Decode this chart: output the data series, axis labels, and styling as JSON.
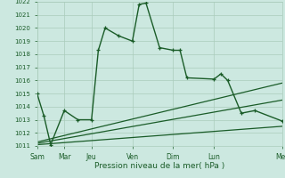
{
  "xlabel": "Pression niveau de la mer( hPa )",
  "bg_color": "#cce8e0",
  "grid_color": "#aaccbb",
  "line_color": "#1a5c28",
  "ylim": [
    1011,
    1022
  ],
  "yticks": [
    1011,
    1012,
    1013,
    1014,
    1015,
    1016,
    1017,
    1018,
    1019,
    1020,
    1021,
    1022
  ],
  "xtick_labels": [
    "Sam",
    "Mar",
    "Jeu",
    "Ven",
    "Dim",
    "Lun",
    "Mer"
  ],
  "xtick_positions": [
    0,
    1,
    2,
    3.5,
    5,
    6.5,
    9
  ],
  "xlim": [
    0,
    9
  ],
  "main_line_x": [
    0,
    0.25,
    0.5,
    1.0,
    1.5,
    2.0,
    2.25,
    2.5,
    3.0,
    3.5,
    3.75,
    4.0,
    4.5,
    5.0,
    5.25,
    5.5,
    6.5,
    6.75,
    7.0,
    7.5,
    8.0,
    9.0
  ],
  "main_line_y": [
    1015.0,
    1013.3,
    1011.1,
    1013.7,
    1013.0,
    1013.0,
    1018.3,
    1020.0,
    1019.4,
    1019.0,
    1021.8,
    1021.9,
    1018.5,
    1018.3,
    1018.3,
    1016.2,
    1016.1,
    1016.5,
    1016.0,
    1013.5,
    1013.7,
    1012.9
  ],
  "line2_x": [
    0,
    9
  ],
  "line2_y": [
    1011.1,
    1012.5
  ],
  "line3_x": [
    0,
    9
  ],
  "line3_y": [
    1011.2,
    1014.5
  ],
  "line4_x": [
    0,
    9
  ],
  "line4_y": [
    1011.3,
    1015.8
  ]
}
